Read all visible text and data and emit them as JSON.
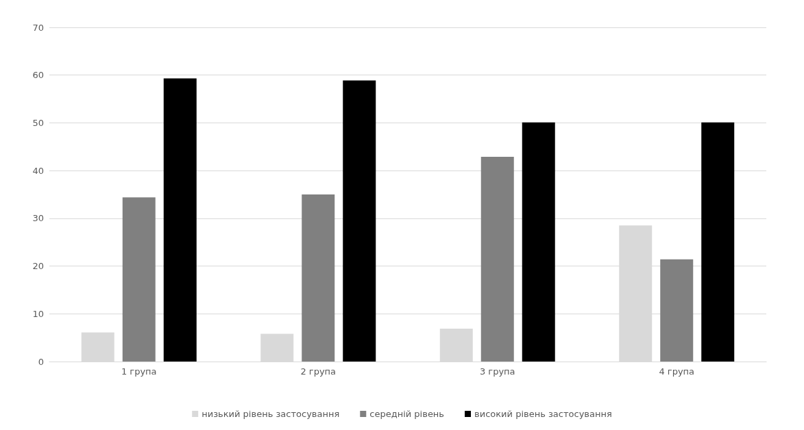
{
  "chart_data": {
    "type": "bar",
    "categories": [
      "1 група",
      "2 група",
      "3 група",
      "4 група"
    ],
    "series": [
      {
        "name": "низький рівень застосування",
        "color": "#d9d9d9",
        "values": [
          6.1,
          5.8,
          6.9,
          28.5
        ]
      },
      {
        "name": "середній рівень",
        "color": "#808080",
        "values": [
          34.4,
          35.0,
          42.9,
          21.4
        ]
      },
      {
        "name": "високий рівень застосування",
        "color": "#000000",
        "values": [
          59.3,
          58.9,
          50.1,
          50.1
        ]
      }
    ],
    "ylim": [
      0,
      70
    ],
    "yticks": [
      0,
      10,
      20,
      30,
      40,
      50,
      60,
      70
    ],
    "grid": "y",
    "legend": "bottom"
  }
}
